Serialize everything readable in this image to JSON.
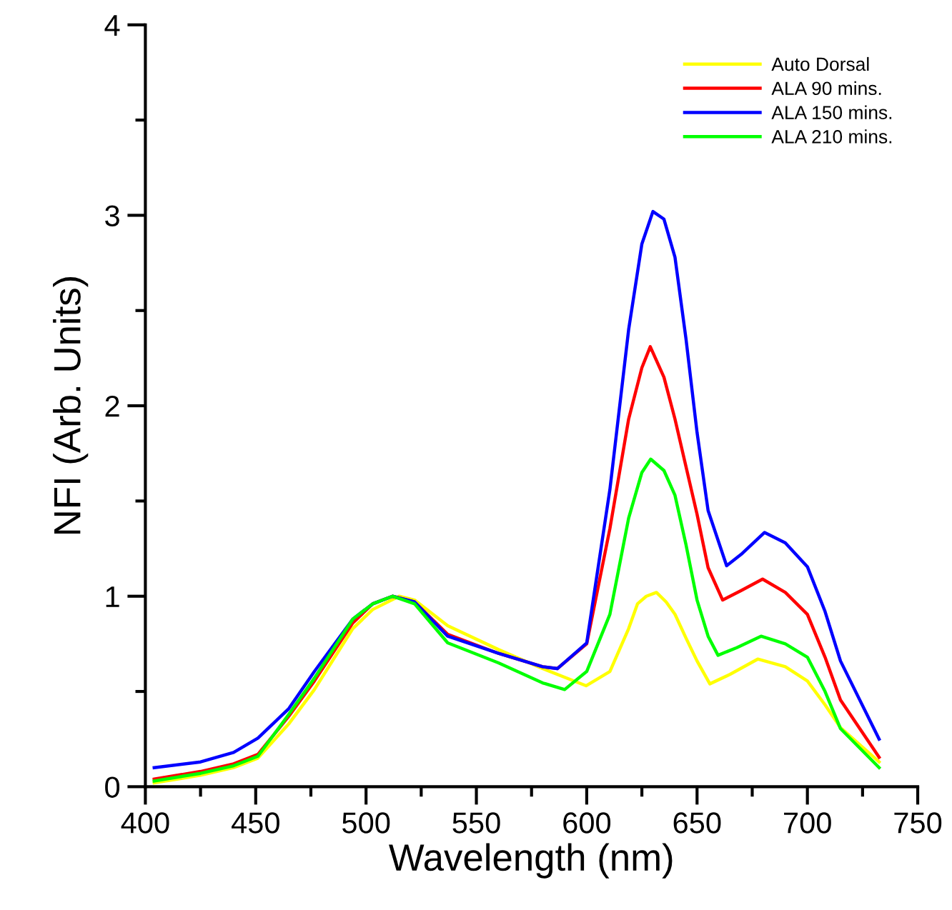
{
  "chart_data": {
    "type": "line",
    "xlabel": "Wavelength (nm)",
    "ylabel": "NFI (Arb. Units)",
    "xlim": [
      400,
      750
    ],
    "xticks": [
      400,
      450,
      500,
      550,
      600,
      650,
      700,
      750
    ],
    "ylim": [
      0,
      4
    ],
    "yticks": [
      0,
      1,
      2,
      3,
      4
    ],
    "grid": false,
    "legend": "top right",
    "marker": "none",
    "line_style": "solid",
    "series": [
      {
        "name": "Auto Dorsal",
        "color": "#ffff00",
        "x": [
          404,
          425,
          440,
          451,
          465,
          476.6,
          494,
          503,
          515,
          522,
          537,
          560,
          580,
          599.7,
          610.5,
          619,
          623,
          627,
          631.6,
          636,
          640,
          645,
          650,
          655.8,
          665,
          677.5,
          690,
          700,
          708,
          715,
          732.5
        ],
        "values": [
          0.02,
          0.06,
          0.1,
          0.15,
          0.33,
          0.51,
          0.83,
          0.93,
          1.0,
          0.98,
          0.845,
          0.72,
          0.62,
          0.53,
          0.605,
          0.83,
          0.96,
          1.0,
          1.02,
          0.97,
          0.905,
          0.78,
          0.66,
          0.54,
          0.59,
          0.67,
          0.63,
          0.555,
          0.43,
          0.31,
          0.13
        ]
      },
      {
        "name": "ALA 90 mins.",
        "color": "#ff0000",
        "x": [
          404,
          425,
          440,
          451,
          465,
          476.6,
          494,
          503,
          512,
          522,
          537,
          560,
          580,
          586.7,
          600,
          610.5,
          619,
          625,
          628.8,
          635,
          640,
          645,
          650,
          655,
          661.6,
          670,
          679.7,
          690,
          700,
          708,
          715,
          732.5
        ],
        "values": [
          0.04,
          0.08,
          0.12,
          0.17,
          0.37,
          0.555,
          0.86,
          0.96,
          1.0,
          0.97,
          0.8,
          0.7,
          0.63,
          0.62,
          0.75,
          1.355,
          1.93,
          2.2,
          2.31,
          2.15,
          1.93,
          1.68,
          1.43,
          1.15,
          0.98,
          1.03,
          1.09,
          1.02,
          0.905,
          0.68,
          0.455,
          0.155
        ]
      },
      {
        "name": "ALA 150 mins.",
        "color": "#0000ff",
        "x": [
          404,
          425,
          440,
          451,
          465,
          476.6,
          494,
          503,
          512,
          522,
          537,
          560,
          580,
          586.7,
          600,
          610.5,
          619,
          625,
          630,
          635,
          640,
          645,
          650,
          655,
          663.4,
          670,
          680.6,
          690,
          700,
          708,
          715,
          732.5
        ],
        "values": [
          0.1,
          0.13,
          0.18,
          0.255,
          0.41,
          0.605,
          0.88,
          0.96,
          1.0,
          0.97,
          0.79,
          0.7,
          0.63,
          0.62,
          0.755,
          1.56,
          2.4,
          2.85,
          3.02,
          2.98,
          2.78,
          2.35,
          1.86,
          1.45,
          1.16,
          1.22,
          1.335,
          1.28,
          1.155,
          0.92,
          0.66,
          0.25
        ]
      },
      {
        "name": "ALA 210 mins.",
        "color": "#00ff00",
        "x": [
          404,
          425,
          440,
          451,
          465,
          476.6,
          494,
          503,
          512,
          522,
          537,
          560,
          580,
          590,
          600,
          610.5,
          619,
          625,
          629,
          635,
          640,
          645,
          650,
          655,
          659.5,
          668,
          679,
          690,
          700,
          708,
          715,
          732.5
        ],
        "values": [
          0.03,
          0.07,
          0.11,
          0.16,
          0.38,
          0.57,
          0.88,
          0.96,
          1.0,
          0.96,
          0.755,
          0.65,
          0.545,
          0.51,
          0.605,
          0.905,
          1.41,
          1.65,
          1.72,
          1.66,
          1.53,
          1.27,
          0.98,
          0.79,
          0.69,
          0.73,
          0.79,
          0.75,
          0.68,
          0.5,
          0.305,
          0.1
        ]
      }
    ]
  }
}
